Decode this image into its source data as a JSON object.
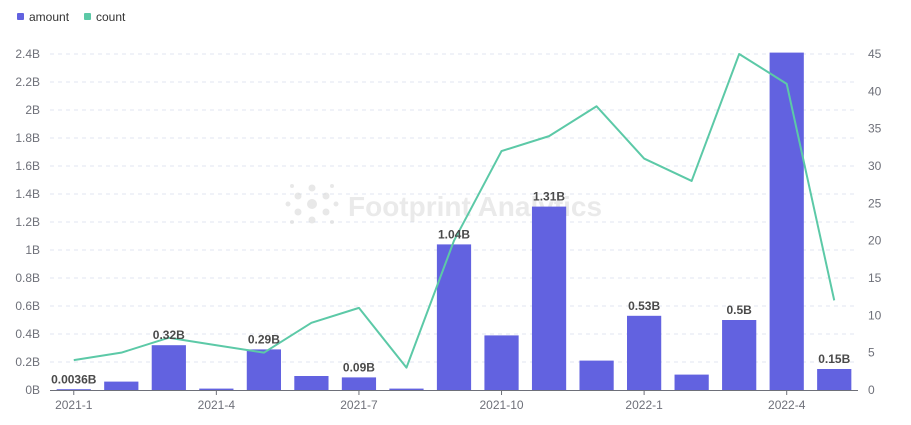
{
  "watermark": {
    "text": "Footprint Analytics"
  },
  "legend": [
    {
      "label": "amount",
      "color": "#6262e0"
    },
    {
      "label": "count",
      "color": "#5cc9a7"
    }
  ],
  "chart_data": {
    "type": "bar",
    "categories": [
      "2021-1",
      "2021-2",
      "2021-3",
      "2021-4",
      "2021-5",
      "2021-6",
      "2021-7",
      "2021-8",
      "2021-9",
      "2021-10",
      "2021-11",
      "2021-12",
      "2022-1",
      "2022-2",
      "2022-3",
      "2022-4",
      "2022-5"
    ],
    "x_tick_labels": [
      "2021-1",
      "",
      "",
      "2021-4",
      "",
      "",
      "2021-7",
      "",
      "",
      "2021-10",
      "",
      "",
      "2022-1",
      "",
      "",
      "2022-4",
      ""
    ],
    "series": [
      {
        "name": "amount",
        "type": "bar",
        "axis": "left",
        "color": "#6262e0",
        "values": [
          0.0036,
          0.06,
          0.32,
          0.01,
          0.29,
          0.1,
          0.09,
          0.01,
          1.04,
          0.39,
          1.31,
          0.21,
          0.53,
          0.11,
          0.5,
          2.41,
          0.15
        ],
        "labels": [
          "0.0036B",
          "",
          "0.32B",
          "",
          "0.29B",
          "",
          "0.09B",
          "",
          "1.04B",
          "",
          "1.31B",
          "",
          "0.53B",
          "",
          "0.5B",
          "",
          "0.15B"
        ]
      },
      {
        "name": "count",
        "type": "line",
        "axis": "right",
        "color": "#5cc9a7",
        "values": [
          4,
          5,
          7,
          6,
          5,
          9,
          11,
          3,
          20,
          32,
          34,
          38,
          31,
          28,
          45,
          41,
          12
        ]
      }
    ],
    "y_left": {
      "ylim": [
        0,
        2.5
      ],
      "ticks": [
        0,
        0.2,
        0.4,
        0.6,
        0.8,
        1.0,
        1.2,
        1.4,
        1.6,
        1.8,
        2.0,
        2.2,
        2.4
      ],
      "tick_labels": [
        "0B",
        "0.2B",
        "0.4B",
        "0.6B",
        "0.8B",
        "1B",
        "1.2B",
        "1.4B",
        "1.6B",
        "1.8B",
        "2B",
        "2.2B",
        "2.4B"
      ]
    },
    "y_right": {
      "ylim": [
        0,
        46.875
      ],
      "ticks": [
        0,
        5,
        10,
        15,
        20,
        25,
        30,
        35,
        40,
        45
      ],
      "tick_labels": [
        "0",
        "5",
        "10",
        "15",
        "20",
        "25",
        "30",
        "35",
        "40",
        "45"
      ]
    },
    "grid": true,
    "legend_position": "top-left"
  }
}
